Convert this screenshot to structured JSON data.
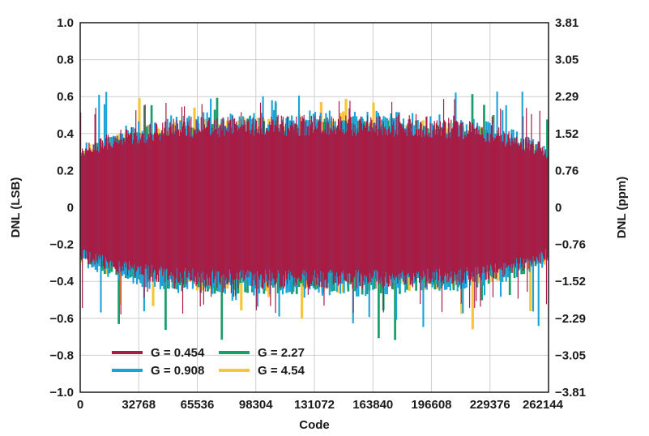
{
  "chart_data": {
    "type": "bar",
    "xlabel": "Code",
    "ylabel": "DNL (LSB)",
    "ylabel_right": "DNL (ppm)",
    "xlim": [
      0,
      262144
    ],
    "ylim": [
      -1.0,
      1.0
    ],
    "x_ticks": [
      "0",
      "32768",
      "65536",
      "98304",
      "131072",
      "163840",
      "196608",
      "229376",
      "262144"
    ],
    "y_ticks_left": [
      "1.0",
      "0.8",
      "0.6",
      "0.4",
      "0.2",
      "0",
      "−0.2",
      "−0.4",
      "−0.6",
      "−0.8",
      "−1.0"
    ],
    "y_ticks_right": [
      "3.81",
      "3.05",
      "2.29",
      "1.52",
      "0.76",
      "0",
      "−0.76",
      "−1.52",
      "−2.29",
      "−3.05",
      "−3.81"
    ],
    "grid": true,
    "legend_position": "bottom-left",
    "series": [
      {
        "name": "G = 0.454",
        "color": "#A81C45",
        "typical_max": 0.48,
        "typical_min": -0.42,
        "peak_max": 0.6,
        "peak_min": -0.58
      },
      {
        "name": "G = 0.908",
        "color": "#1BA2D8",
        "typical_max": 0.5,
        "typical_min": -0.46,
        "peak_max": 0.68,
        "peak_min": -0.65
      },
      {
        "name": "G = 2.27",
        "color": "#1A9E6A",
        "typical_max": 0.46,
        "typical_min": -0.45,
        "peak_max": 0.62,
        "peak_min": -0.72
      },
      {
        "name": "G = 4.54",
        "color": "#F6C640",
        "typical_max": 0.47,
        "typical_min": -0.44,
        "peak_max": 0.6,
        "peak_min": -0.66
      }
    ]
  }
}
